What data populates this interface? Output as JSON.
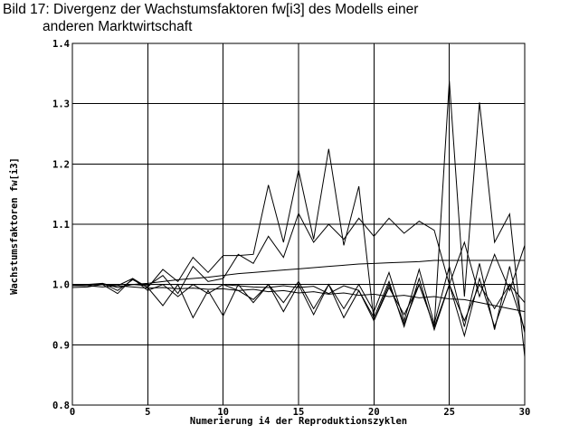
{
  "title_line1": "Bild 17: Divergenz der Wachstumsfaktoren fw[i3] des Modells einer",
  "title_line2": "anderen Marktwirtschaft",
  "chart_data": {
    "type": "line",
    "title": "Bild 17: Divergenz der Wachstumsfaktoren fw[i3] des Modells einer anderen Marktwirtschaft",
    "xlabel": "Numerierung i4 der Reproduktionszyklen",
    "ylabel": "Wachstumsfaktoren fw[i3]",
    "xlim": [
      0,
      30
    ],
    "ylim": [
      0.8,
      1.4
    ],
    "xticks": [
      0,
      5,
      10,
      15,
      20,
      25,
      30
    ],
    "yticks": [
      0.8,
      0.9,
      1.0,
      1.1,
      1.2,
      1.3,
      1.4
    ],
    "xtick_labels": [
      "0",
      "5",
      "10",
      "15",
      "20",
      "25",
      "30"
    ],
    "ytick_labels": [
      "0.8",
      "0.9",
      "1.0",
      "1.1",
      "1.2",
      "1.3",
      "1.4"
    ],
    "grid": true,
    "line_color": "#000000",
    "x": [
      0,
      1,
      2,
      3,
      4,
      5,
      6,
      7,
      8,
      9,
      10,
      11,
      12,
      13,
      14,
      15,
      16,
      17,
      18,
      19,
      20,
      21,
      22,
      23,
      24,
      25,
      26,
      27,
      28,
      29,
      30
    ],
    "series": [
      {
        "values": [
          1.0,
          1.0,
          1.0,
          0.998,
          1.01,
          0.995,
          1.025,
          1.005,
          1.045,
          1.02,
          1.048,
          1.048,
          1.05,
          1.165,
          1.07,
          1.19,
          1.075,
          1.225,
          1.065,
          1.163,
          0.94,
          1.0,
          0.935,
          1.0,
          0.93,
          1.338,
          0.98,
          1.302,
          1.07,
          1.117,
          0.88
        ]
      },
      {
        "values": [
          1.0,
          1.0,
          1.002,
          0.995,
          1.0,
          0.998,
          1.015,
          0.985,
          1.03,
          1.005,
          1.01,
          1.05,
          1.035,
          1.08,
          1.045,
          1.118,
          1.07,
          1.1,
          1.075,
          1.11,
          1.08,
          1.11,
          1.085,
          1.105,
          1.09,
          1.0,
          1.07,
          0.98,
          1.05,
          0.99,
          1.065
        ]
      },
      {
        "values": [
          1.0,
          1.0,
          1.0,
          1.0,
          1.0,
          1.002,
          1.005,
          1.008,
          1.01,
          1.012,
          1.015,
          1.018,
          1.02,
          1.022,
          1.024,
          1.026,
          1.028,
          1.03,
          1.032,
          1.034,
          1.035,
          1.036,
          1.037,
          1.038,
          1.04,
          1.04,
          1.04,
          1.04,
          1.04,
          1.04,
          1.04
        ]
      },
      {
        "values": [
          0.998,
          0.998,
          1.002,
          0.99,
          1.008,
          0.995,
          0.965,
          1.0,
          0.945,
          0.99,
          0.948,
          1.0,
          0.97,
          1.0,
          0.955,
          1.0,
          0.95,
          1.0,
          0.945,
          0.99,
          0.945,
          1.005,
          0.93,
          1.01,
          0.925,
          1.0,
          0.915,
          1.01,
          0.93,
          1.0,
          0.925
        ]
      },
      {
        "values": [
          1.0,
          0.998,
          0.996,
          0.998,
          0.996,
          0.994,
          0.995,
          0.993,
          0.994,
          0.992,
          0.993,
          0.99,
          0.992,
          0.988,
          0.99,
          0.986,
          0.988,
          0.984,
          0.986,
          0.982,
          0.984,
          0.98,
          0.982,
          0.978,
          0.98,
          0.976,
          0.975,
          0.97,
          0.965,
          0.96,
          0.955
        ]
      },
      {
        "values": [
          0.995,
          0.996,
          1.0,
          0.985,
          1.01,
          0.99,
          1.0,
          0.98,
          1.0,
          0.985,
          1.0,
          0.99,
          0.975,
          1.0,
          0.97,
          1.005,
          0.96,
          1.0,
          0.96,
          1.0,
          0.955,
          1.02,
          0.94,
          1.025,
          0.935,
          1.03,
          0.93,
          1.035,
          0.925,
          1.03,
          0.92
        ]
      },
      {
        "values": [
          1.0,
          1.0,
          1.0,
          1.0,
          1.0,
          1.0,
          1.0,
          1.0,
          1.0,
          1.0,
          1.0,
          0.998,
          0.996,
          0.995,
          0.998,
          0.995,
          0.997,
          0.985,
          0.998,
          0.99,
          0.94,
          0.995,
          0.95,
          1.0,
          0.93,
          1.0,
          0.94,
          1.0,
          0.96,
          1.0,
          0.97
        ]
      }
    ]
  }
}
